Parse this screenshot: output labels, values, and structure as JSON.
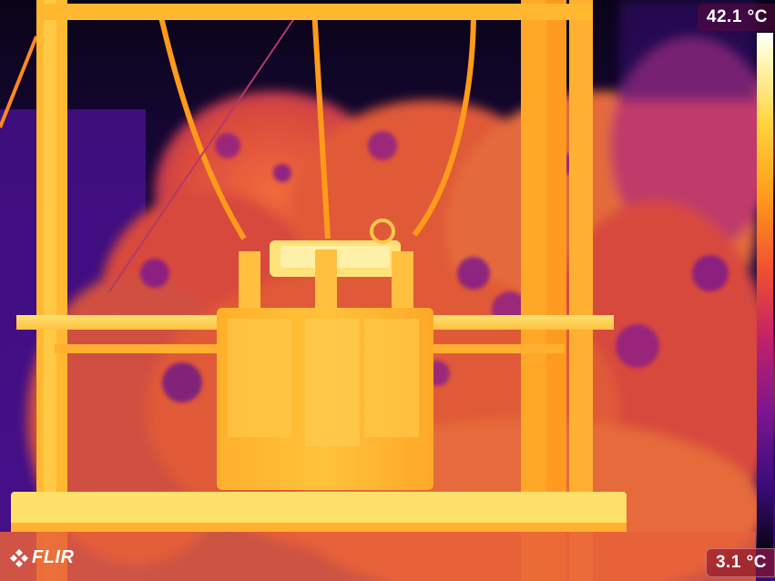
{
  "brand": {
    "logo_text": "FLIR"
  },
  "temperature_scale": {
    "max_label": "42.1 °C",
    "min_label": "3.1 °C",
    "palette": [
      "#ffffff",
      "#fff6b0",
      "#ffd23a",
      "#ff9a1a",
      "#f05030",
      "#c0206a",
      "#7a1690",
      "#3a0c7a",
      "#0a0418"
    ]
  },
  "scene": {
    "description_icon": "thermal-image",
    "colors": {
      "sky": "#0a0418",
      "sky_mid": "#2a0a6a",
      "foliage": "#e0583a",
      "foliage_dark": "#8a1a8a",
      "hot_structure": "#ffd23a",
      "hottest": "#fff0a0"
    }
  }
}
